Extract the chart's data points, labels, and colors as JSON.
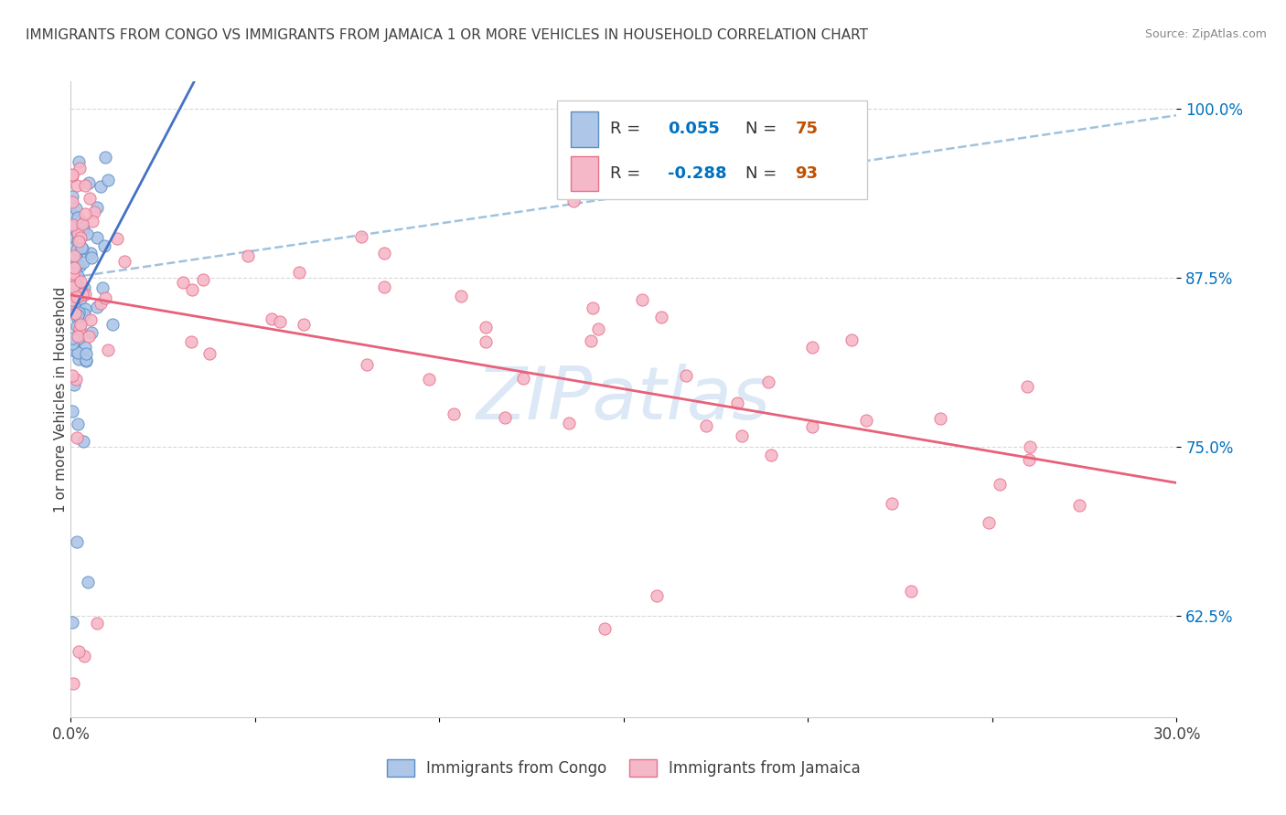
{
  "title": "IMMIGRANTS FROM CONGO VS IMMIGRANTS FROM JAMAICA 1 OR MORE VEHICLES IN HOUSEHOLD CORRELATION CHART",
  "source": "Source: ZipAtlas.com",
  "ylabel": "1 or more Vehicles in Household",
  "xlim": [
    0.0,
    0.3
  ],
  "ylim": [
    0.55,
    1.02
  ],
  "congo_R": 0.055,
  "congo_N": 75,
  "jamaica_R": -0.288,
  "jamaica_N": 93,
  "congo_color": "#aec6e8",
  "congo_edge_color": "#5b8ec4",
  "jamaica_color": "#f5b8c8",
  "jamaica_edge_color": "#e8708a",
  "congo_line_color": "#4472c4",
  "jamaica_line_color": "#e8607a",
  "dashed_line_color": "#90b8d8",
  "watermark_color": "#dce8f5",
  "grid_color": "#d8d8d8",
  "title_color": "#404040",
  "source_color": "#888888",
  "ytick_color": "#0070c0",
  "xtick_color": "#404040",
  "legend_R_color": "#0070c0",
  "legend_N_color": "#c05000",
  "legend_border_color": "#cccccc"
}
